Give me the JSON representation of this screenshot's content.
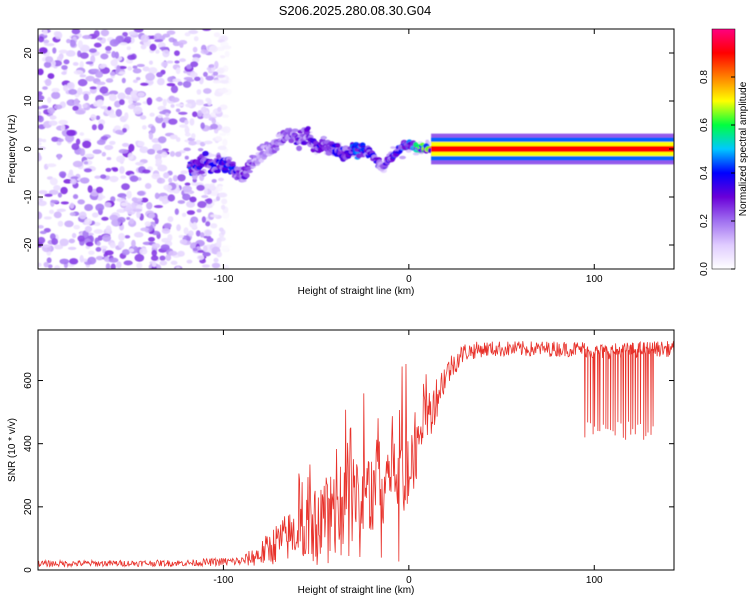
{
  "title": "S206.2025.280.08.30.G04",
  "chart_data": [
    {
      "type": "heatmap",
      "name": "spectrogram",
      "xlabel": "Height of straight line (km)",
      "ylabel": "Frequency (Hz)",
      "xlim": [
        -200,
        143
      ],
      "ylim": [
        -25,
        25
      ],
      "xticks": [
        -100,
        0,
        100
      ],
      "xtick_labels": [
        "-100",
        "0",
        "100"
      ],
      "yticks": [
        -20,
        -10,
        0,
        10,
        20
      ],
      "ytick_labels": [
        "-20",
        "-10",
        "0",
        "10",
        "20"
      ],
      "colorbar": {
        "label": "Normalized spectral amplitude",
        "range": [
          0,
          1
        ],
        "ticks": [
          0.0,
          0.2,
          0.4,
          0.6,
          0.8
        ],
        "tick_labels": [
          "0.0",
          "0.2",
          "0.4",
          "0.6",
          "0.8"
        ],
        "colormap": [
          "#ffffff",
          "#e0ccff",
          "#a070f0",
          "#6a00d8",
          "#0000ff",
          "#00c8ff",
          "#00ff40",
          "#ffff00",
          "#ff8000",
          "#ff0000",
          "#ff0080"
        ]
      },
      "ridge": {
        "x": [
          -118,
          -110,
          -100,
          -95,
          -90,
          -85,
          -80,
          -75,
          -70,
          -65,
          -60,
          -55,
          -50,
          -45,
          -40,
          -35,
          -30,
          -25,
          -20,
          -15,
          -10,
          -5,
          0,
          5,
          10,
          15,
          143
        ],
        "frequency": [
          -4,
          -3,
          -3,
          -4,
          -6,
          -3,
          -1,
          0,
          2,
          3,
          2,
          3,
          0,
          1,
          0,
          -1,
          0,
          0,
          -1,
          -4,
          -2,
          0,
          1,
          0,
          0,
          0,
          0
        ],
        "amplitude": [
          0.45,
          0.4,
          0.4,
          0.45,
          0.35,
          0.3,
          0.25,
          0.3,
          0.3,
          0.3,
          0.35,
          0.35,
          0.4,
          0.35,
          0.4,
          0.45,
          0.5,
          0.45,
          0.4,
          0.35,
          0.4,
          0.5,
          0.5,
          0.6,
          0.8,
          0.9,
          0.9
        ]
      },
      "noise_region_x": [
        -200,
        -97
      ]
    },
    {
      "type": "line",
      "name": "snr",
      "xlabel": "Height of straight line (km)",
      "ylabel": "SNR (10 * v/v)",
      "xlim": [
        -200,
        143
      ],
      "ylim": [
        0,
        760
      ],
      "xticks": [
        -100,
        0,
        100
      ],
      "xtick_labels": [
        "-100",
        "0",
        "100"
      ],
      "yticks": [
        0,
        200,
        400,
        600
      ],
      "ytick_labels": [
        "0",
        "200",
        "400",
        "600"
      ],
      "line_color": "#e8322b",
      "envelope": {
        "x": [
          -200,
          -120,
          -90,
          -80,
          -70,
          -60,
          -50,
          -40,
          -30,
          -20,
          -15,
          -10,
          -5,
          0,
          5,
          10,
          15,
          20,
          25,
          30,
          40,
          60,
          80,
          95,
          100,
          130,
          143
        ],
        "y": [
          20,
          22,
          28,
          50,
          90,
          120,
          150,
          190,
          220,
          250,
          300,
          320,
          370,
          320,
          420,
          480,
          550,
          620,
          660,
          690,
          700,
          700,
          700,
          700,
          690,
          700,
          700
        ]
      },
      "noise_amplitude": [
        10,
        10,
        15,
        40,
        70,
        90,
        110,
        140,
        150,
        150,
        160,
        160,
        150,
        180,
        110,
        90,
        70,
        50,
        40,
        30,
        25,
        25,
        25,
        25,
        25,
        25,
        25
      ],
      "dropouts": {
        "x_range": [
          95,
          132
        ],
        "count": 28,
        "min_y": 410
      }
    }
  ]
}
